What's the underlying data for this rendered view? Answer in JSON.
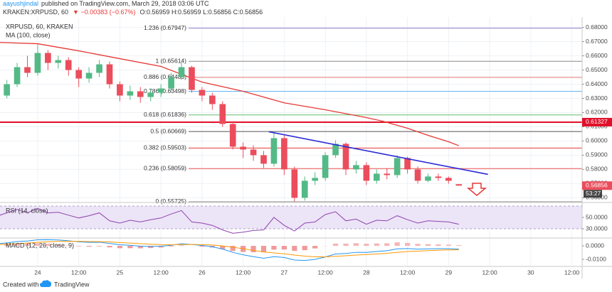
{
  "header": {
    "author": "aayushjindal",
    "published": "published on TradingView.com, March 29, 2018 03:06 UTC",
    "symbol": "KRAKEN:XRPUSD, 60",
    "change": "▼ −0.00383 (−0.67%)",
    "ohlc": "O:0.56959 H:0.56959 L:0.56856 C:0.56856"
  },
  "chart_data": [
    {
      "type": "candlestick",
      "title": "XRPUSD, 60, KRAKEN",
      "x": [
        -12,
        -9,
        -6,
        -3,
        0,
        3,
        6,
        9,
        12,
        15,
        18,
        21,
        24,
        27,
        30,
        33,
        36,
        39,
        42,
        45,
        48,
        51,
        54,
        57,
        60,
        63,
        66,
        69,
        72,
        75,
        78,
        81,
        84,
        87,
        90,
        93,
        96,
        99,
        102,
        105,
        108,
        111,
        114,
        117,
        120,
        123
      ],
      "open": [
        0.628,
        0.632,
        0.64,
        0.652,
        0.648,
        0.662,
        0.655,
        0.657,
        0.65,
        0.644,
        0.648,
        0.654,
        0.64,
        0.632,
        0.635,
        0.631,
        0.634,
        0.637,
        0.645,
        0.652,
        0.636,
        0.632,
        0.626,
        0.612,
        0.596,
        0.594,
        0.59,
        0.584,
        0.602,
        0.58,
        0.56,
        0.572,
        0.574,
        0.59,
        0.598,
        0.58,
        0.583,
        0.572,
        0.577,
        0.576,
        0.588,
        0.58,
        0.572,
        0.575,
        0.574,
        0.56959
      ],
      "high": [
        0.636,
        0.643,
        0.655,
        0.66,
        0.668,
        0.664,
        0.66,
        0.659,
        0.652,
        0.652,
        0.657,
        0.656,
        0.642,
        0.639,
        0.638,
        0.637,
        0.64,
        0.648,
        0.65614,
        0.653,
        0.638,
        0.634,
        0.628,
        0.614,
        0.599,
        0.597,
        0.593,
        0.60669,
        0.604,
        0.582,
        0.575,
        0.578,
        0.592,
        0.6005,
        0.599,
        0.586,
        0.585,
        0.58,
        0.581,
        0.59,
        0.589,
        0.582,
        0.577,
        0.577,
        0.575,
        0.56959
      ],
      "low": [
        0.625,
        0.63,
        0.638,
        0.645,
        0.646,
        0.65,
        0.651,
        0.646,
        0.638,
        0.641,
        0.645,
        0.637,
        0.628,
        0.629,
        0.627,
        0.628,
        0.631,
        0.635,
        0.643,
        0.634,
        0.628,
        0.622,
        0.61,
        0.594,
        0.588,
        0.586,
        0.581,
        0.582,
        0.576,
        0.55725,
        0.558,
        0.569,
        0.572,
        0.588,
        0.576,
        0.577,
        0.569,
        0.57,
        0.573,
        0.574,
        0.577,
        0.57,
        0.571,
        0.572,
        0.57,
        0.56856
      ],
      "close": [
        0.632,
        0.64,
        0.652,
        0.648,
        0.662,
        0.655,
        0.657,
        0.65,
        0.644,
        0.648,
        0.654,
        0.64,
        0.632,
        0.635,
        0.631,
        0.634,
        0.637,
        0.645,
        0.652,
        0.636,
        0.632,
        0.626,
        0.612,
        0.596,
        0.594,
        0.59,
        0.584,
        0.602,
        0.58,
        0.56,
        0.572,
        0.574,
        0.59,
        0.598,
        0.58,
        0.583,
        0.572,
        0.577,
        0.576,
        0.588,
        0.58,
        0.572,
        0.575,
        0.574,
        0.572,
        0.56856
      ],
      "up_color": "#53b987",
      "down_color": "#eb4d5c",
      "series": [
        {
          "name": "MA (100, close)",
          "color": "#e53935",
          "x": [
            -12,
            0,
            12,
            24,
            36,
            48,
            60,
            72,
            84,
            96,
            101,
            108,
            114,
            120,
            123
          ],
          "values": [
            0.6695,
            0.6685,
            0.6635,
            0.658,
            0.6525,
            0.6415,
            0.635,
            0.6269,
            0.622,
            0.6165,
            0.6138,
            0.609,
            0.604,
            0.5995,
            0.5967
          ]
        }
      ],
      "fib_levels": [
        {
          "label": "1.236 (0.67947)",
          "value": 0.67947,
          "color": "#8c7fc9"
        },
        {
          "label": "1 (0.65614)",
          "value": 0.65614,
          "color": "#8a8a8a"
        },
        {
          "label": "0.886 (0.64486)",
          "value": 0.64486,
          "color": "#e57373"
        },
        {
          "label": "0.786 (0.63498)",
          "value": 0.63498,
          "color": "#64b5f6"
        },
        {
          "label": "0.618 (0.61836)",
          "value": 0.61836,
          "color": "#66bb6a"
        },
        {
          "label": "0.5 (0.60669)",
          "value": 0.60669,
          "color": "#555555"
        },
        {
          "label": "0.382 (0.59503)",
          "value": 0.59503,
          "color": "#e53935"
        },
        {
          "label": "0.236 (0.58059)",
          "value": 0.58059,
          "color": "#ef5350"
        },
        {
          "label": "0 (0.55725)",
          "value": 0.55725,
          "color": "#9e9e9e"
        }
      ],
      "hlines": [
        {
          "value": 0.61327,
          "color": "#e0102a"
        }
      ],
      "trendlines": [
        {
          "x": [
            67.5,
            131.5
          ],
          "values": [
            0.6065,
            0.5765
          ],
          "color": "#2a2ad6"
        }
      ],
      "countdown": "53:27",
      "xlim": [
        -11,
        159
      ],
      "xticks": [
        {
          "value": 0,
          "label": "24"
        },
        {
          "value": 12,
          "label": "12:00"
        },
        {
          "value": 24,
          "label": "25"
        },
        {
          "value": 36,
          "label": "12:00"
        },
        {
          "value": 48,
          "label": "26"
        },
        {
          "value": 60,
          "label": "12:00"
        },
        {
          "value": 72,
          "label": "27"
        },
        {
          "value": 84,
          "label": "12:00"
        },
        {
          "value": 96,
          "label": "28"
        },
        {
          "value": 108,
          "label": "12:00"
        },
        {
          "value": 120,
          "label": "29"
        },
        {
          "value": 132,
          "label": "12:00"
        },
        {
          "value": 144,
          "label": "30"
        },
        {
          "value": 156,
          "label": "12:00"
        }
      ],
      "ylim": [
        0.5572,
        0.6873
      ],
      "yticks": [
        {
          "value": 0.56,
          "label": "0.56000"
        },
        {
          "value": 0.57,
          "label": "0.57000"
        },
        {
          "value": 0.58,
          "label": "0.58000"
        },
        {
          "value": 0.59,
          "label": "0.59000"
        },
        {
          "value": 0.6,
          "label": "0.60000"
        },
        {
          "value": 0.61,
          "label": "0.61000"
        },
        {
          "value": 0.62,
          "label": "0.62000"
        },
        {
          "value": 0.63,
          "label": "0.63000"
        },
        {
          "value": 0.64,
          "label": "0.64000"
        },
        {
          "value": 0.65,
          "label": "0.65000"
        },
        {
          "value": 0.66,
          "label": "0.66000"
        },
        {
          "value": 0.67,
          "label": "0.67000"
        },
        {
          "value": 0.68,
          "label": "0.68000"
        }
      ],
      "grid": true
    },
    {
      "type": "line",
      "title": "RSI (14, close)",
      "color": "#8e44ad",
      "values": [
        52,
        58,
        64,
        58,
        66,
        58,
        59,
        54,
        49,
        53,
        58,
        44,
        40,
        45,
        42,
        46,
        49,
        56,
        62,
        42,
        40,
        36,
        28,
        22,
        24,
        27,
        28,
        50,
        36,
        26,
        40,
        42,
        55,
        60,
        44,
        47,
        38,
        45,
        44,
        53,
        46,
        40,
        44,
        43,
        42,
        38
      ],
      "band": [
        30,
        70
      ],
      "band_color": "#ece4f7",
      "ylim": [
        15,
        75
      ],
      "yticks": [
        {
          "value": 50,
          "label": "50.0000"
        },
        {
          "value": 30,
          "label": "30.0000"
        }
      ]
    },
    {
      "type": "macd",
      "title": "MACD (12, 26, close, 9)",
      "lines": [
        {
          "color": "#2196f3",
          "values": [
            0.0015,
            0.0022,
            0.0032,
            0.0036,
            0.0045,
            0.0046,
            0.0044,
            0.0038,
            0.003,
            0.0026,
            0.0027,
            0.0018,
            0.0008,
            0.0004,
            -0.0002,
            -0.0004,
            -0.0003,
            0.0004,
            0.0016,
            0.001,
            0.0003,
            -0.0006,
            -0.0024,
            -0.0048,
            -0.0066,
            -0.008,
            -0.0092,
            -0.008,
            -0.0086,
            -0.0105,
            -0.0108,
            -0.01,
            -0.0082,
            -0.006,
            -0.0056,
            -0.0048,
            -0.0048,
            -0.0042,
            -0.0036,
            -0.0022,
            -0.002,
            -0.0024,
            -0.0022,
            -0.0021,
            -0.0021,
            -0.0024
          ]
        },
        {
          "color": "#ff9800",
          "values": [
            0.001,
            0.0013,
            0.0017,
            0.0021,
            0.0026,
            0.003,
            0.0033,
            0.0034,
            0.0033,
            0.0032,
            0.0031,
            0.0029,
            0.0025,
            0.0021,
            0.0016,
            0.0012,
            0.0009,
            0.0008,
            0.001,
            0.001,
            0.0009,
            0.0006,
            0.0,
            -0.001,
            -0.0021,
            -0.0033,
            -0.0045,
            -0.0052,
            -0.0059,
            -0.0068,
            -0.0076,
            -0.0081,
            -0.0081,
            -0.0077,
            -0.0073,
            -0.0068,
            -0.0064,
            -0.006,
            -0.0055,
            -0.0048,
            -0.0042,
            -0.0039,
            -0.0035,
            -0.0032,
            -0.003,
            -0.0029
          ]
        }
      ],
      "histogram": {
        "up_color": "#f5b5b5",
        "down_color": "#ef9a9a",
        "values": [
          0.0005,
          0.0009,
          0.0015,
          0.0015,
          0.0019,
          0.0016,
          0.0011,
          0.0004,
          -0.0003,
          -0.0006,
          -0.0004,
          -0.0011,
          -0.0017,
          -0.0017,
          -0.0018,
          -0.0016,
          -0.0012,
          -0.0004,
          0.0006,
          0.0,
          -0.0006,
          -0.0012,
          -0.0024,
          -0.0038,
          -0.0045,
          -0.0047,
          -0.0047,
          -0.0028,
          -0.0027,
          -0.0037,
          -0.0032,
          -0.0019,
          -0.0001,
          0.0017,
          0.0017,
          0.002,
          0.0016,
          0.0018,
          0.0019,
          0.0026,
          0.0022,
          0.0015,
          0.0013,
          0.0011,
          0.0009,
          0.0005
        ]
      },
      "ylim": [
        -0.0147,
        0.0053
      ],
      "yticks": [
        {
          "value": 0,
          "label": "0.0000"
        },
        {
          "value": -0.01,
          "label": "-0.0100"
        }
      ]
    }
  ],
  "footer": {
    "created": "Created with",
    "brand": "TradingView"
  }
}
